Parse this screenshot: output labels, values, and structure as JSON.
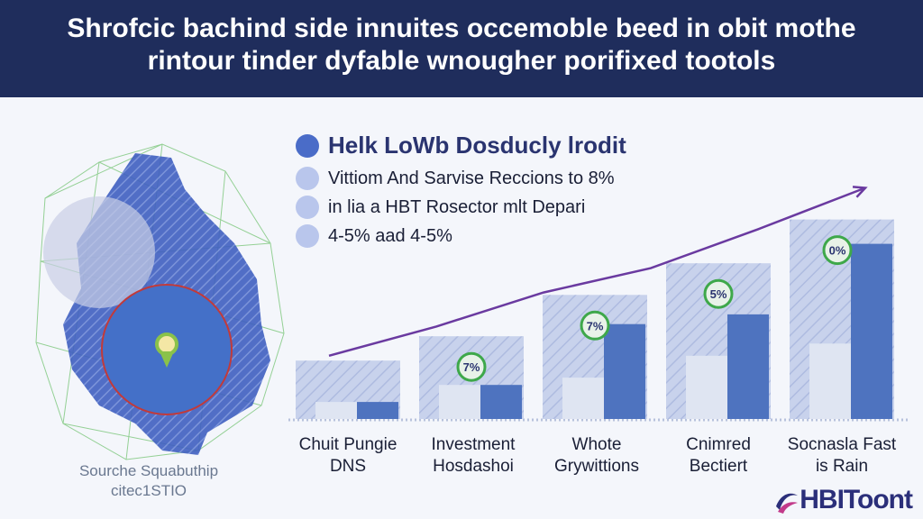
{
  "header": {
    "title_line1": "Shrofcic bachind side innuites occemoble beed in obit mothe",
    "title_line2": "rintour tinder dyfable wnougher porifixed tootols"
  },
  "bullets": {
    "main": "Helk LoWb Dosducly lrodit",
    "items": [
      "Vittiom And Sarvise Reccions to 8%",
      "in lia a HBT Rosector mlt Depari",
      "4-5% aad 4-5%"
    ]
  },
  "map": {
    "caption_line1": "Sourche Squabuthip",
    "caption_line2": "citec1STIO"
  },
  "chart_data": {
    "type": "bar",
    "categories": [
      "Chuit Pungie DNS",
      "Investment Hosdashoi",
      "Whote Grywittions",
      "Cnimred Bectiert",
      "Socnasla Fast is Rain"
    ],
    "category_lines": [
      [
        "Chuit Pungie",
        "DNS"
      ],
      [
        "Investment",
        "Hosdashoi"
      ],
      [
        "Whote",
        "Grywittions"
      ],
      [
        "Cnimred",
        "Bectiert"
      ],
      [
        "Socnasla Fast",
        "is Rain"
      ]
    ],
    "series": [
      {
        "values": [
          24,
          34,
          51,
          64,
          82
        ],
        "color": "#c8d2ec"
      },
      {
        "values": [
          7,
          14,
          17,
          26,
          31
        ],
        "color": "#dfe5f2"
      },
      {
        "values": [
          7,
          14,
          39,
          43,
          72
        ],
        "color": "#4e73bf"
      }
    ],
    "badges": [
      "",
      "7%",
      "7%",
      "5%",
      "0%"
    ],
    "trend": [
      26,
      38,
      52,
      62,
      78,
      95
    ],
    "ylim": [
      0,
      100
    ],
    "colors": {
      "badge": "#3ea84a",
      "trend": "#6a3aa0",
      "accent": "#4a6cc8"
    }
  },
  "logo": {
    "text": "HBIToont"
  }
}
